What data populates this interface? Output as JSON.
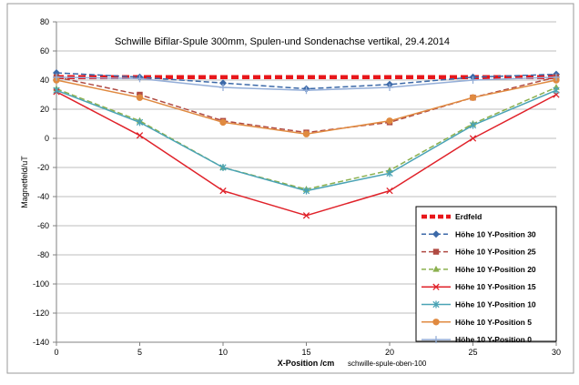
{
  "chart_data": {
    "type": "line",
    "title": "Schwille Bifilar-Spule 300mm,  Spulen-und Sondenachse vertikal, 29.4.2014",
    "xlabel": "X-Position /cm",
    "ylabel": "Magnetfeld/uT",
    "footnote": "schwille-spule-oben-100",
    "x": [
      0,
      5,
      10,
      15,
      20,
      25,
      30
    ],
    "xticks": [
      0,
      5,
      10,
      15,
      20,
      25,
      30
    ],
    "xlim": [
      0,
      30
    ],
    "ylim": [
      -140,
      80
    ],
    "yticks": [
      -140,
      -120,
      -100,
      -80,
      -60,
      -40,
      -20,
      0,
      20,
      40,
      60,
      80
    ],
    "grid": "horizontal",
    "legend": "bottom-right",
    "series": [
      {
        "name": "Erdfeld",
        "values": [
          42,
          42,
          42,
          42,
          42,
          42,
          42
        ],
        "color": "#e8161a",
        "style": "bold-dashed",
        "marker": "none"
      },
      {
        "name": "Höhe 10 Y-Position 30",
        "values": [
          45,
          42,
          38,
          34,
          37,
          42,
          44
        ],
        "color": "#3c69a8",
        "style": "dashed",
        "marker": "diamond"
      },
      {
        "name": "Höhe 10 Y-Position 25",
        "values": [
          42,
          30,
          12,
          4,
          11,
          28,
          42
        ],
        "color": "#b04a42",
        "style": "dashed",
        "marker": "square"
      },
      {
        "name": "Höhe 10 Y-Position 20",
        "values": [
          34,
          12,
          -20,
          -35,
          -22,
          10,
          35
        ],
        "color": "#8bb04e",
        "style": "dashed",
        "marker": "triangle"
      },
      {
        "name": "Höhe 10 Y-Position 15",
        "values": [
          32,
          2,
          -36,
          -53,
          -36,
          0,
          30
        ],
        "color": "#e0222a",
        "style": "solid",
        "marker": "x"
      },
      {
        "name": "Höhe 10 Y-Position 10",
        "values": [
          33,
          11,
          -20,
          -36,
          -24,
          9,
          33
        ],
        "color": "#4aa3b5",
        "style": "solid",
        "marker": "star"
      },
      {
        "name": "Höhe 10 Y-Position 5",
        "values": [
          40,
          28,
          11,
          3,
          12,
          28,
          40
        ],
        "color": "#e08a40",
        "style": "solid",
        "marker": "circle"
      },
      {
        "name": "Höhe 10 Y-Position 0",
        "values": [
          42,
          41,
          35,
          33,
          35,
          40,
          42
        ],
        "color": "#94aed8",
        "style": "solid",
        "marker": "plus"
      }
    ]
  }
}
